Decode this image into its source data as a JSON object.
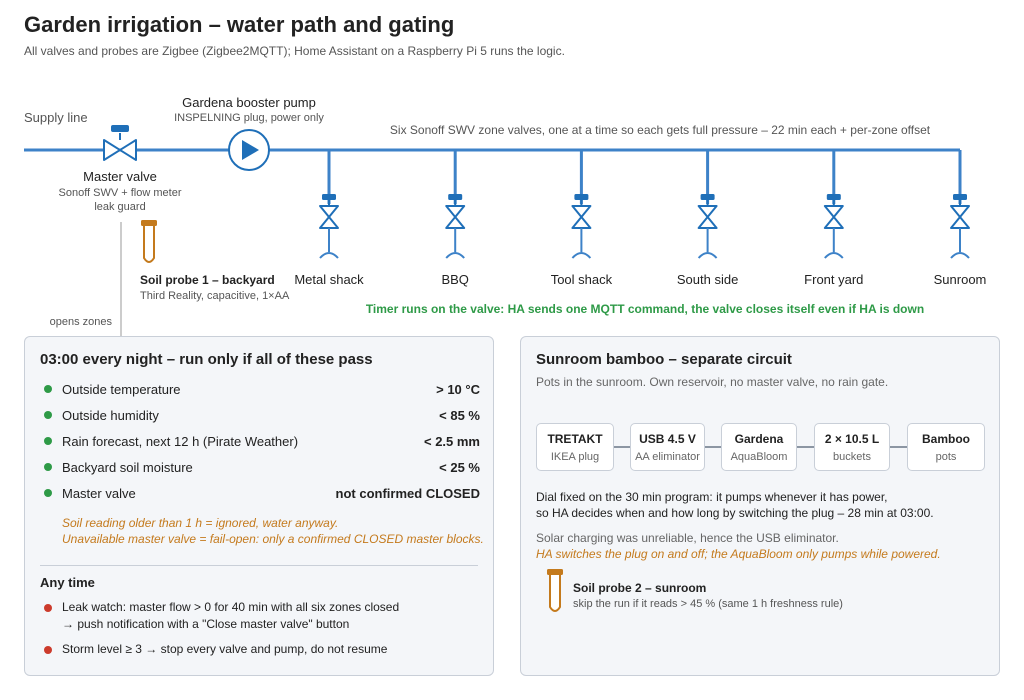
{
  "header": {
    "title": "Garden irrigation – water path and gating",
    "subtitle": "All valves and probes are Zigbee (Zigbee2MQTT); Home Assistant on a Raspberry Pi 5 runs the logic."
  },
  "path": {
    "supply_label": "Supply line",
    "master_valve": {
      "label": "Master valve",
      "sub1": "Sonoff SWV + flow meter",
      "sub2": "leak guard"
    },
    "pump": {
      "label": "Gardena booster pump",
      "sub": "INSPELNING plug, power only"
    },
    "zones_caption": "Six Sonoff SWV zone valves, one at a time so each gets full pressure – 22 min each + per-zone offset",
    "zones": [
      "Metal shack",
      "BBQ",
      "Tool shack",
      "South side",
      "Front yard",
      "Sunroom"
    ],
    "probe1": {
      "name": "Soil probe 1 – backyard",
      "sub": "Third Reality, capacitive, 1×AA"
    },
    "timer_note": "Timer runs on the valve: HA sends one MQTT command, the valve closes itself even if HA is down",
    "opens_label": "opens zones",
    "colors": {
      "pipe": "#3d82c8",
      "valve": "#1f6fb8",
      "probe": "#c47a1d",
      "note_green": "#2e9a47"
    }
  },
  "rules": {
    "title": "03:00 every night – run only if all of these pass",
    "conditions": [
      {
        "label": "Outside temperature",
        "value": "> 10 °C"
      },
      {
        "label": "Outside humidity",
        "value": "< 85 %"
      },
      {
        "label": "Rain forecast, next 12 h (Pirate Weather)",
        "value": "< 2.5 mm"
      },
      {
        "label": "Backyard soil moisture",
        "value": "< 25 %"
      },
      {
        "label": "Master valve",
        "value": "not confirmed CLOSED"
      }
    ],
    "notes": [
      "Soil reading older than 1 h = ignored, water anyway.",
      "Unavailable master valve = fail-open: only a confirmed CLOSED master blocks."
    ],
    "anytime_title": "Any time",
    "anytime": [
      {
        "line1": "Leak watch: master flow > 0 for 40 min with all six zones closed",
        "line2": "→ push notification with a \"Close master valve\" button"
      },
      {
        "line1": "Storm level ≥ 3 → stop every valve and pump, do not resume",
        "line2": ""
      }
    ]
  },
  "sunroom": {
    "title": "Sunroom bamboo – separate circuit",
    "subtitle": "Pots in the sunroom. Own reservoir, no master valve, no rain gate.",
    "chain": [
      {
        "name": "TRETAKT",
        "sub": "IKEA plug"
      },
      {
        "name": "USB 4.5 V",
        "sub": "AA eliminator"
      },
      {
        "name": "Gardena",
        "sub": "AquaBloom"
      },
      {
        "name": "2 × 10.5 L",
        "sub": "buckets"
      },
      {
        "name": "Bamboo",
        "sub": "pots"
      }
    ],
    "body1": "Dial fixed on the 30 min program: it pumps whenever it has power,",
    "body2": "so HA decides when and how long by switching the plug – 28 min at 03:00.",
    "note_grey": "Solar charging was unreliable, hence the USB eliminator.",
    "note_italic": "HA switches the plug on and off; the AquaBloom only pumps while powered.",
    "probe2": {
      "name": "Soil probe 2 – sunroom",
      "sub": "skip the run if it reads > 45 % (same 1 h freshness rule)"
    }
  }
}
